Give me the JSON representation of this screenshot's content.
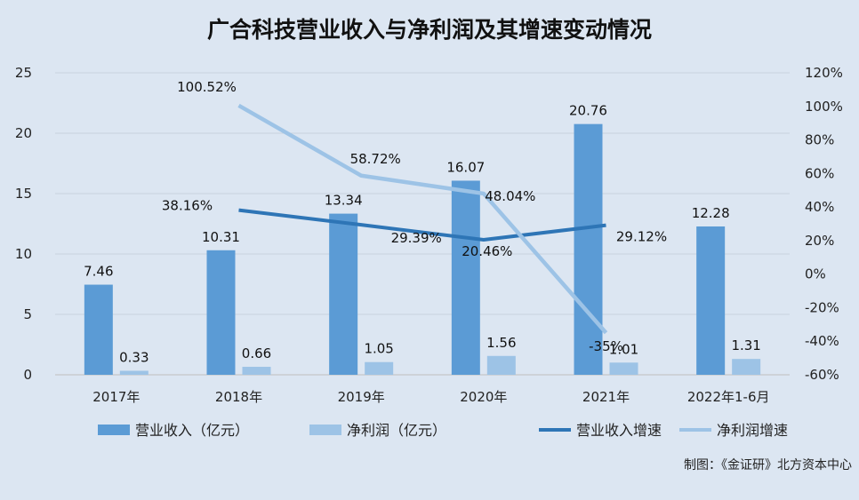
{
  "chart_data": {
    "type": "bar",
    "title": "广合科技营业收入与净利润及其增速变动情况",
    "categories": [
      "2017年",
      "2018年",
      "2019年",
      "2020年",
      "2021年",
      "2022年1-6月"
    ],
    "y_left": {
      "ylim": [
        0,
        25
      ],
      "ticks": [
        "0",
        "5",
        "10",
        "15",
        "20",
        "25"
      ]
    },
    "y_right": {
      "ylim": [
        -60,
        120
      ],
      "ticks": [
        "-60%",
        "-40%",
        "-20%",
        "0%",
        "20%",
        "40%",
        "60%",
        "80%",
        "100%",
        "120%"
      ]
    },
    "series": [
      {
        "name": "营业收入（亿元）",
        "type": "bar",
        "axis": "left",
        "color": "#5b9bd5",
        "values": [
          7.46,
          10.31,
          13.34,
          16.07,
          20.76,
          12.28
        ],
        "labels": [
          "7.46",
          "10.31",
          "13.34",
          "16.07",
          "20.76",
          "12.28"
        ]
      },
      {
        "name": "净利润（亿元）",
        "type": "bar",
        "axis": "left",
        "color": "#9dc3e6",
        "values": [
          0.33,
          0.66,
          1.05,
          1.56,
          1.01,
          1.31
        ],
        "labels": [
          "0.33",
          "0.66",
          "1.05",
          "1.56",
          "1.01",
          "1.31"
        ]
      },
      {
        "name": "营业收入增速",
        "type": "line",
        "axis": "right",
        "color": "#2e75b6",
        "values": [
          null,
          38.16,
          29.39,
          20.46,
          29.12,
          null
        ],
        "labels": [
          null,
          "38.16%",
          "29.39%",
          "20.46%",
          "29.12%",
          null
        ]
      },
      {
        "name": "净利润增速",
        "type": "line",
        "axis": "right",
        "color": "#9dc3e6",
        "values": [
          null,
          100.52,
          58.72,
          48.04,
          -35,
          null
        ],
        "labels": [
          null,
          "100.52%",
          "58.72%",
          "48.04%",
          "-35%",
          null
        ]
      }
    ],
    "grid": true,
    "legend": "bottom"
  },
  "credit": "制图：《金证研》北方资本中心"
}
